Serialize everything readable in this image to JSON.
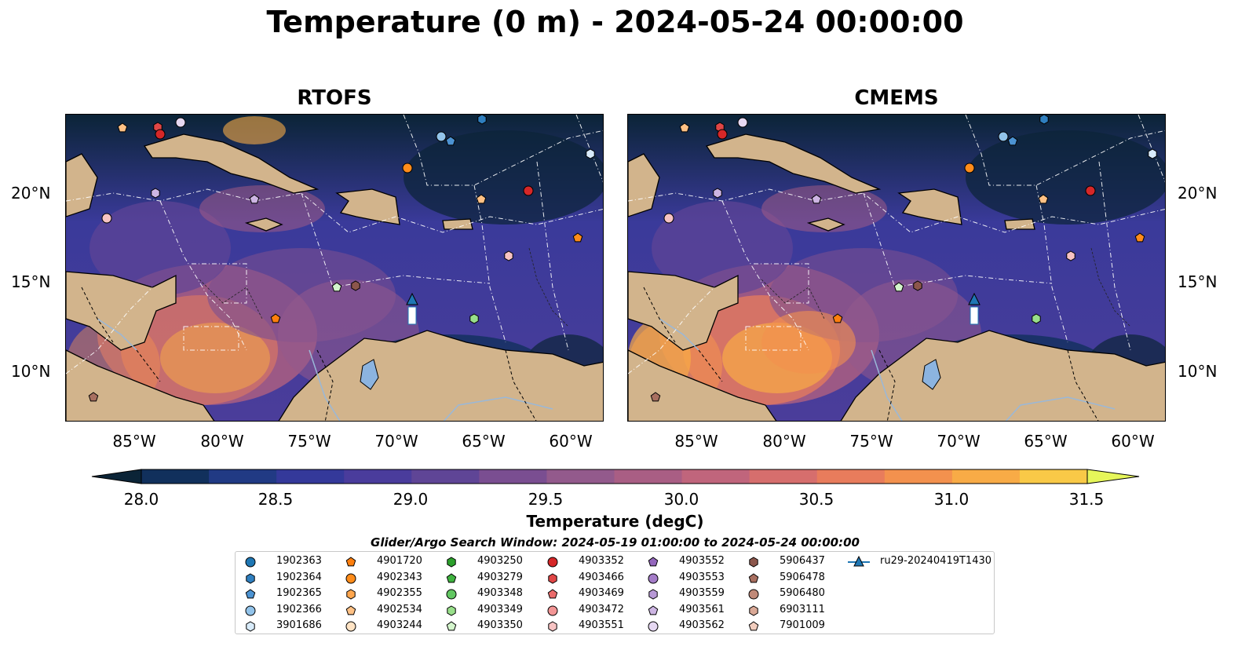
{
  "title": "Temperature (0 m) - 2024-05-24 00:00:00",
  "panels": [
    {
      "title": "RTOFS"
    },
    {
      "title": "CMEMS"
    }
  ],
  "axes": {
    "lat_labels": [
      "20°N",
      "15°N",
      "10°N"
    ],
    "lon_labels": [
      "85°W",
      "80°W",
      "75°W",
      "70°W",
      "65°W",
      "60°W"
    ]
  },
  "colorbar": {
    "label": "Temperature (degC)",
    "ticks": [
      "28.0",
      "28.5",
      "29.0",
      "29.5",
      "30.0",
      "30.5",
      "31.0",
      "31.5"
    ],
    "colors": [
      "#0b2437",
      "#11305c",
      "#213a84",
      "#34399a",
      "#4a3c9c",
      "#5f4596",
      "#7a4e91",
      "#935a8c",
      "#a95e84",
      "#c0657c",
      "#d66e6d",
      "#e87c5c",
      "#f3914e",
      "#f8ab46",
      "#f9c947",
      "#e6f65a"
    ],
    "min": 28.0,
    "max": 31.5
  },
  "search_window": "Glider/Argo Search Window: 2024-05-19 01:00:00 to 2024-05-24 00:00:00",
  "legend": [
    {
      "label": "1902363",
      "marker": "circle",
      "color": "#1f77b4"
    },
    {
      "label": "1902364",
      "marker": "hexagon",
      "color": "#2f7fbf"
    },
    {
      "label": "1902365",
      "marker": "pentagon",
      "color": "#4c93d2"
    },
    {
      "label": "1902366",
      "marker": "circle",
      "color": "#92c3ea"
    },
    {
      "label": "3901686",
      "marker": "hexagon",
      "color": "#d8ebfa"
    },
    {
      "label": "4901720",
      "marker": "pentagon",
      "color": "#ff7f0e"
    },
    {
      "label": "4902343",
      "marker": "circle",
      "color": "#ff8c1a"
    },
    {
      "label": "4902355",
      "marker": "hexagon",
      "color": "#ffa64d"
    },
    {
      "label": "4902534",
      "marker": "pentagon",
      "color": "#ffc185"
    },
    {
      "label": "4903244",
      "marker": "circle",
      "color": "#ffe3c4"
    },
    {
      "label": "4903250",
      "marker": "hexagon",
      "color": "#2ca02c"
    },
    {
      "label": "4903279",
      "marker": "pentagon",
      "color": "#3fb33f"
    },
    {
      "label": "4903348",
      "marker": "circle",
      "color": "#62c762"
    },
    {
      "label": "4903349",
      "marker": "hexagon",
      "color": "#98df8a"
    },
    {
      "label": "4903350",
      "marker": "pentagon",
      "color": "#d4f5cc"
    },
    {
      "label": "4903352",
      "marker": "circle",
      "color": "#d62728"
    },
    {
      "label": "4903466",
      "marker": "hexagon",
      "color": "#e04646"
    },
    {
      "label": "4903469",
      "marker": "pentagon",
      "color": "#ea6b6b"
    },
    {
      "label": "4903472",
      "marker": "circle",
      "color": "#f29595"
    },
    {
      "label": "4903551",
      "marker": "hexagon",
      "color": "#f7c3c3"
    },
    {
      "label": "4903552",
      "marker": "pentagon",
      "color": "#9467bd"
    },
    {
      "label": "4903553",
      "marker": "circle",
      "color": "#a47cc8"
    },
    {
      "label": "4903559",
      "marker": "hexagon",
      "color": "#b899d6"
    },
    {
      "label": "4903561",
      "marker": "pentagon",
      "color": "#cdb5e3"
    },
    {
      "label": "4903562",
      "marker": "circle",
      "color": "#e6d8f2"
    },
    {
      "label": "5906437",
      "marker": "hexagon",
      "color": "#8c564b"
    },
    {
      "label": "5906478",
      "marker": "pentagon",
      "color": "#a86f60"
    },
    {
      "label": "5906480",
      "marker": "circle",
      "color": "#c08978"
    },
    {
      "label": "6903111",
      "marker": "hexagon",
      "color": "#d9a896"
    },
    {
      "label": "7901009",
      "marker": "pentagon",
      "color": "#f2cdbe"
    },
    {
      "label": "ru29-20240419T1430",
      "marker": "triangle-line",
      "color": "#1f77b4"
    }
  ]
}
